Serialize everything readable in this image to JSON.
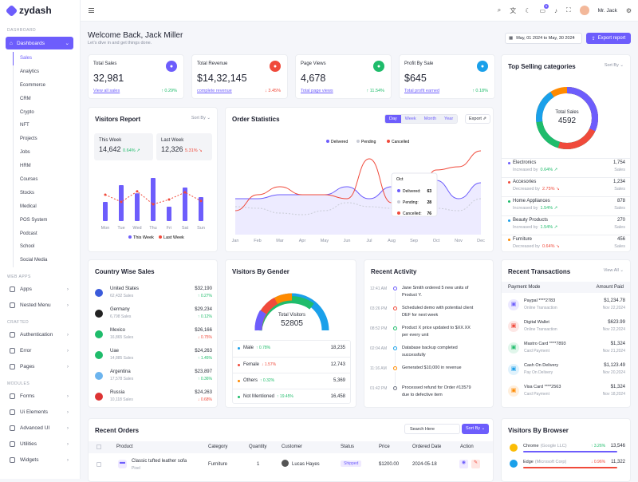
{
  "brand": "zydash",
  "sidebar": {
    "sec1": "DASHBOARD",
    "dashboards": "Dashboards",
    "sub": [
      "Sales",
      "Analytics",
      "Ecommerce",
      "CRM",
      "Crypto",
      "NFT",
      "Projects",
      "Jobs",
      "HRM",
      "Courses",
      "Stocks",
      "Medical",
      "POS System",
      "Podcast",
      "School",
      "Social Media"
    ],
    "sec2": "WEB APPS",
    "apps": [
      "Apps",
      "Nested Menu"
    ],
    "sec3": "CRAFTED",
    "crafted": [
      "Authentication",
      "Error",
      "Pages"
    ],
    "sec4": "MODULES",
    "modules": [
      "Forms",
      "Ui Elements",
      "Advanced UI",
      "Utilities",
      "Widgets"
    ]
  },
  "topbar": {
    "user": "Mr. Jack",
    "badge": "5"
  },
  "header": {
    "title": "Welcome Back, Jack Miller",
    "subtitle": "Let's dive in and get things done.",
    "date": "May, 01 2024 to May, 30 2024",
    "export": "Export report"
  },
  "stats": [
    {
      "label": "Total Sales",
      "value": "32,981",
      "link": "View all sales",
      "change": "0.29%",
      "color": "#6d5dfc",
      "icon": "bag-icon"
    },
    {
      "label": "Total Revenue",
      "value": "$14,32,145",
      "link": "complete revenue",
      "change": "3.45%",
      "color": "#f04a3b",
      "icon": "dollar-icon"
    },
    {
      "label": "Page Views",
      "value": "4,678",
      "link": "Total page views",
      "change": "11.54%",
      "color": "#1fbc6b",
      "icon": "users-icon"
    },
    {
      "label": "Profit By Sale",
      "value": "$645",
      "link": "Total profit earned",
      "change": "0.18%",
      "color": "#1aa0ea",
      "icon": "wallet-icon"
    }
  ],
  "visitors": {
    "title": "Visitors Report",
    "sort": "Sort By",
    "this_week_label": "This Week",
    "this_week": "14,642",
    "this_change": "0.64%",
    "last_week_label": "Last Week",
    "last_week": "12,326",
    "last_change": "5.31%",
    "days": [
      "Mon",
      "Tue",
      "Wed",
      "Thu",
      "Fri",
      "Sat",
      "Sun"
    ],
    "legend1": "This Week",
    "legend2": "Last Week",
    "this_values": [
      40,
      75,
      58,
      90,
      30,
      70,
      50
    ],
    "last_values": [
      55,
      40,
      62,
      35,
      45,
      60,
      42
    ]
  },
  "orders": {
    "title": "Order Statistics",
    "tabs": [
      "Day",
      "Week",
      "Month",
      "Year"
    ],
    "export": "Export",
    "legend": [
      "Delivered",
      "Pending",
      "Cancelled"
    ],
    "months": [
      "Jan",
      "Feb",
      "Mar",
      "Apr",
      "May",
      "Jun",
      "Jul",
      "Aug",
      "Sep",
      "Oct",
      "Nov",
      "Dec"
    ],
    "tooltip": {
      "title": "Oct",
      "delivered": "63",
      "pending": "28",
      "cancelled": "76"
    },
    "delivered": [
      40,
      40,
      45,
      45,
      45,
      55,
      40,
      55,
      50,
      63,
      40,
      60
    ],
    "pending": [
      30,
      28,
      22,
      20,
      25,
      35,
      30,
      28,
      30,
      28,
      25,
      40
    ],
    "cancelled": [
      25,
      45,
      55,
      45,
      45,
      40,
      90,
      35,
      30,
      76,
      80,
      100
    ]
  },
  "top_selling": {
    "title": "Top Selling categories",
    "sort": "Sort By",
    "total_label": "Total Sales",
    "total": "4592",
    "items": [
      {
        "name": "Electronics",
        "trend": "Increased by",
        "pct": "0.64%",
        "value": "1,754",
        "unit": "Sales",
        "color": "#6d5dfc",
        "up": true
      },
      {
        "name": "Accesories",
        "trend": "Decreased by",
        "pct": "2.75%",
        "value": "1,234",
        "unit": "Sales",
        "color": "#f04a3b",
        "up": false
      },
      {
        "name": "Home Appliances",
        "trend": "Increased by",
        "pct": "1.54%",
        "value": "878",
        "unit": "Sales",
        "color": "#1fbc6b",
        "up": true
      },
      {
        "name": "Beauty Products",
        "trend": "Increased by",
        "pct": "1.54%",
        "value": "270",
        "unit": "Sales",
        "color": "#1aa0ea",
        "up": true
      },
      {
        "name": "Furniture",
        "trend": "Decreased by",
        "pct": "0.64%",
        "value": "456",
        "unit": "Sales",
        "color": "#ff8a00",
        "up": false
      }
    ]
  },
  "country": {
    "title": "Country Wise Sales",
    "rows": [
      {
        "name": "United States",
        "sales": "62,432 Sales",
        "value": "$32,190",
        "change": "0.27%",
        "up": true,
        "flag": "us"
      },
      {
        "name": "Germany",
        "sales": "6,798 Sales",
        "value": "$29,234",
        "change": "0.12%",
        "up": true,
        "flag": "de"
      },
      {
        "name": "Mexico",
        "sales": "16,865 Sales",
        "value": "$26,166",
        "change": "0.75%",
        "up": false,
        "flag": "mx"
      },
      {
        "name": "Uae",
        "sales": "14,885 Sales",
        "value": "$24,263",
        "change": "1.45%",
        "up": true,
        "flag": "ae"
      },
      {
        "name": "Argentina",
        "sales": "17,578 Sales",
        "value": "$23,897",
        "change": "0.36%",
        "up": true,
        "flag": "ar"
      },
      {
        "name": "Russia",
        "sales": "10,118 Sales",
        "value": "$24,263",
        "change": "0.68%",
        "up": false,
        "flag": "ru"
      }
    ]
  },
  "gender": {
    "title": "Visitors By Gender",
    "total_label": "Total Visitors",
    "total": "52805",
    "rows": [
      {
        "name": "Male",
        "pct": "0.78%",
        "value": "18,235",
        "color": "#1aa0ea"
      },
      {
        "name": "Female",
        "pct": "1.57%",
        "value": "12,743",
        "color": "#f04a3b",
        "down": true
      },
      {
        "name": "Others",
        "pct": "0.32%",
        "value": "5,369",
        "color": "#ff8a00"
      },
      {
        "name": "Not Mentioned",
        "pct": "19.45%",
        "value": "16,458",
        "color": "#1fbc6b"
      }
    ]
  },
  "activity": {
    "title": "Recent Activity",
    "rows": [
      {
        "time": "12:41 AM",
        "color": "#6d5dfc",
        "line1": "Jane Smith ordered 5 new units of",
        "line2": "Product Y."
      },
      {
        "time": "03:26 PM",
        "color": "#f04a3b",
        "line1": "Scheduled demo with potential client",
        "line2": "DEF for next week"
      },
      {
        "time": "08:52 PM",
        "color": "#1fbc6b",
        "line1": "Product X price updated to $XX.XX",
        "line2": "per every unit"
      },
      {
        "time": "02:04 AM",
        "color": "#1aa0ea",
        "line1": "Database backup completed",
        "line2": "successfully"
      },
      {
        "time": "11:16 AM",
        "color": "#ff8a00",
        "line1": "Generated $10,000 in revenue",
        "line2": ""
      },
      {
        "time": "01:42 PM",
        "color": "#6b7080",
        "line1": "Processed refund for Order #13579",
        "line2": "due to defective item"
      }
    ]
  },
  "transactions": {
    "title": "Recent Transactions",
    "view_all": "View All",
    "col1": "Payment Mode",
    "col2": "Amount Paid",
    "rows": [
      {
        "name": "Paypal ****2783",
        "sub": "Online Transaction",
        "amount": "$1,234.78",
        "date": "Nov 22,2024",
        "color": "#6d5dfc"
      },
      {
        "name": "Digital Wallet",
        "sub": "Online Transaction",
        "amount": "$623.99",
        "date": "Nov 22,2024",
        "color": "#f04a3b"
      },
      {
        "name": "Mastro Card ****7893",
        "sub": "Card Payment",
        "amount": "$1,324",
        "date": "Nov 21,2024",
        "color": "#1fbc6b"
      },
      {
        "name": "Cash On Delivery",
        "sub": "Pay On Delivery",
        "amount": "$1,123.49",
        "date": "Nov 20,2024",
        "color": "#1aa0ea"
      },
      {
        "name": "Visa Card ****2563",
        "sub": "Card Payment",
        "amount": "$1,324",
        "date": "Nov 18,2024",
        "color": "#ff8a00"
      }
    ]
  },
  "recent_orders": {
    "title": "Recent Orders",
    "search": "Search Here",
    "sort": "Sort By",
    "cols": [
      "Product",
      "Category",
      "Quantity",
      "Customer",
      "Status",
      "Price",
      "Ordered Date",
      "Action"
    ],
    "row": {
      "product": "Classic tufted leather sofa",
      "sub": "Pixel",
      "category": "Furniture",
      "qty": "1",
      "customer": "Lucas Hayes",
      "status": "Shipped",
      "price": "$1200.00",
      "date": "2024-05-18"
    }
  },
  "browser": {
    "title": "Visitors By Browser",
    "rows": [
      {
        "name": "Chrome",
        "sub": "(Google LLC)",
        "pct": "3.26%",
        "value": "13,546",
        "up": true,
        "color": "#6d5dfc"
      },
      {
        "name": "Edge",
        "sub": "(Microsoft Corp)",
        "pct": "0.96%",
        "value": "11,322",
        "up": false,
        "color": "#f04a3b"
      }
    ]
  }
}
